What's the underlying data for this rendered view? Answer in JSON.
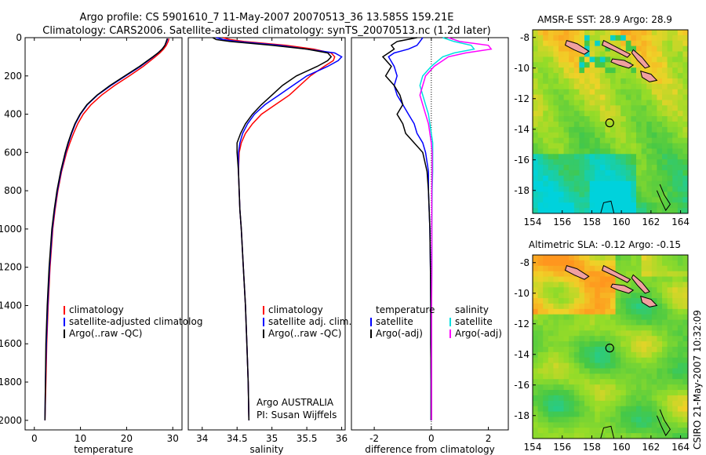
{
  "title_line1": "Argo profile: CS 5901610_7 11-May-2007 20070513_36 13.585S 159.21E",
  "title_line2": "Climatology: CARS2006. Satellite-adjusted climatology: synTS_20070513.nc (1.2d later)",
  "side_label": "CSIRO 21-May-2007 10:32:09",
  "argo_credit": "Argo AUSTRALIA",
  "pi_credit": "PI: Susan Wijffels",
  "colors": {
    "climatology": "#ff0000",
    "satellite": "#0000ff",
    "argo": "#000000",
    "sat_sal": "#00e0e0",
    "argo_sal": "#ff00ff",
    "land": "#f0a0a0"
  },
  "chart_data": [
    {
      "type": "line",
      "id": "temperature",
      "xlabel": "temperature",
      "ylabel": "",
      "xlim": [
        -2,
        32
      ],
      "ylim": [
        2050,
        0
      ],
      "xticks": [
        0,
        10,
        20,
        30
      ],
      "yticks": [
        0,
        200,
        400,
        600,
        800,
        1000,
        1200,
        1400,
        1600,
        1800,
        2000
      ],
      "legend": [
        "climatology",
        "satellite-adjusted climatolog",
        "Argo(..raw -QC)"
      ],
      "depth": [
        5,
        20,
        40,
        60,
        80,
        100,
        150,
        200,
        250,
        300,
        350,
        400,
        450,
        500,
        550,
        600,
        700,
        800,
        900,
        1000,
        1200,
        1400,
        1600,
        1800,
        2000
      ],
      "series": [
        {
          "name": "climatology",
          "values": [
            29.2,
            29.0,
            28.6,
            28.0,
            27.2,
            26.2,
            23.6,
            20.6,
            17.4,
            14.6,
            12.3,
            10.6,
            9.4,
            8.5,
            7.7,
            7.0,
            5.9,
            5.1,
            4.5,
            4.0,
            3.4,
            3.0,
            2.7,
            2.5,
            2.3
          ]
        },
        {
          "name": "satellite-adjusted climatolog",
          "values": [
            28.9,
            28.7,
            28.3,
            27.7,
            26.8,
            25.8,
            23.0,
            19.8,
            16.6,
            13.7,
            11.5,
            10.0,
            8.9,
            8.1,
            7.4,
            6.8,
            5.8,
            5.0,
            4.4,
            3.9,
            3.3,
            2.9,
            2.6,
            2.4,
            2.3
          ]
        },
        {
          "name": "Argo(..raw -QC)",
          "values": [
            28.8,
            28.6,
            28.3,
            27.7,
            26.8,
            25.7,
            22.8,
            19.6,
            16.4,
            13.6,
            11.4,
            9.9,
            8.8,
            8.0,
            7.3,
            6.7,
            5.7,
            4.9,
            4.3,
            3.8,
            3.2,
            2.8,
            2.5,
            2.4,
            2.3
          ]
        }
      ]
    },
    {
      "type": "line",
      "id": "salinity",
      "xlabel": "salinity",
      "ylabel": "",
      "xlim": [
        33.8,
        36.05
      ],
      "ylim": [
        2050,
        0
      ],
      "xticks": [
        34,
        34.5,
        35,
        35.5,
        36
      ],
      "yticks": [],
      "legend": [
        "climatology",
        "satellite adj. clim.",
        "Argo(..raw -QC)"
      ],
      "depth": [
        0,
        10,
        20,
        40,
        60,
        80,
        100,
        120,
        150,
        200,
        250,
        300,
        350,
        400,
        450,
        500,
        550,
        600,
        700,
        800,
        900,
        1000,
        1200,
        1400,
        1600,
        1800,
        2000
      ],
      "series": [
        {
          "name": "climatology",
          "values": [
            34.3,
            34.4,
            34.6,
            35.2,
            35.6,
            35.85,
            35.9,
            35.88,
            35.75,
            35.55,
            35.4,
            35.25,
            35.05,
            34.85,
            34.72,
            34.62,
            34.56,
            34.53,
            34.52,
            34.53,
            34.54,
            34.56,
            34.59,
            34.62,
            34.64,
            34.66,
            34.67
          ]
        },
        {
          "name": "satellite adj. clim.",
          "values": [
            34.2,
            34.3,
            34.5,
            35.1,
            35.5,
            35.9,
            36.0,
            35.95,
            35.8,
            35.5,
            35.3,
            35.1,
            34.9,
            34.75,
            34.65,
            34.58,
            34.54,
            34.52,
            34.52,
            34.53,
            34.54,
            34.56,
            34.59,
            34.62,
            34.64,
            34.66,
            34.67
          ]
        },
        {
          "name": "Argo(..raw -QC)",
          "values": [
            34.15,
            34.2,
            34.4,
            35.0,
            35.5,
            35.8,
            35.85,
            35.8,
            35.65,
            35.35,
            35.15,
            35.0,
            34.85,
            34.72,
            34.62,
            34.55,
            34.5,
            34.5,
            34.52,
            34.53,
            34.54,
            34.56,
            34.59,
            34.62,
            34.64,
            34.66,
            34.67
          ]
        }
      ]
    },
    {
      "type": "line",
      "id": "difference",
      "xlabel": "difference from climatology",
      "ylabel": "",
      "xlim": [
        -2.8,
        2.7
      ],
      "ylim": [
        2050,
        0
      ],
      "xticks": [
        -2,
        0,
        2
      ],
      "yticks": [],
      "legend_left": [
        "temperature",
        "satellite",
        "Argo(-adj)"
      ],
      "legend_right": [
        "salinity",
        "satellite",
        "Argo(-adj)"
      ],
      "depth": [
        0,
        20,
        40,
        60,
        80,
        100,
        150,
        200,
        250,
        300,
        350,
        400,
        450,
        500,
        550,
        600,
        700,
        800,
        1000,
        1200,
        1400,
        1600,
        1800,
        2000
      ],
      "series": [
        {
          "name": "temperature satellite",
          "values": [
            -0.3,
            -0.4,
            -0.5,
            -0.8,
            -1.3,
            -1.5,
            -1.3,
            -1.2,
            -1.3,
            -1.2,
            -1.0,
            -0.8,
            -0.6,
            -0.5,
            -0.3,
            -0.2,
            -0.1,
            -0.1,
            -0.05,
            -0.03,
            -0.02,
            -0.02,
            -0.01,
            -0.01
          ]
        },
        {
          "name": "temperature Argo(-adj)",
          "values": [
            -0.5,
            -1.2,
            -1.4,
            -1.3,
            -1.5,
            -1.7,
            -1.4,
            -1.6,
            -1.3,
            -1.1,
            -1.0,
            -1.2,
            -1.0,
            -0.9,
            -0.6,
            -0.3,
            -0.15,
            -0.1,
            -0.05,
            -0.03,
            -0.02,
            -0.02,
            -0.01,
            -0.01
          ]
        },
        {
          "name": "salinity satellite",
          "values": [
            0.4,
            0.8,
            1.4,
            1.5,
            0.8,
            0.4,
            0.0,
            -0.3,
            -0.4,
            -0.3,
            -0.2,
            -0.1,
            -0.05,
            0.0,
            0.05,
            0.05,
            0.05,
            0.03,
            0.02,
            0.02,
            0.01,
            0.01,
            0.01,
            0.01
          ]
        },
        {
          "name": "salinity Argo(-adj)",
          "values": [
            0.6,
            1.0,
            2.0,
            2.1,
            1.2,
            0.6,
            0.1,
            -0.2,
            -0.3,
            -0.4,
            -0.3,
            -0.2,
            -0.1,
            -0.05,
            0.0,
            0.03,
            0.03,
            0.02,
            0.02,
            0.02,
            0.01,
            0.01,
            0.01,
            0.01
          ]
        }
      ]
    },
    {
      "type": "heatmap",
      "id": "sst",
      "title": "AMSR-E SST: 28.9 Argo: 28.9",
      "xlim": [
        154,
        164.5
      ],
      "ylim": [
        -19.5,
        -7.5
      ],
      "xticks": [
        154,
        156,
        158,
        160,
        162,
        164
      ],
      "yticks": [
        -8,
        -10,
        -12,
        -14,
        -16,
        -18
      ],
      "argo_position": [
        159.21,
        -13.585
      ]
    },
    {
      "type": "heatmap",
      "id": "sla",
      "title": "Altimetric SLA: -0.12 Argo: -0.15",
      "xlim": [
        154,
        164.5
      ],
      "ylim": [
        -19.5,
        -7.5
      ],
      "xticks": [
        154,
        156,
        158,
        160,
        162,
        164
      ],
      "yticks": [
        -8,
        -10,
        -12,
        -14,
        -16,
        -18
      ],
      "argo_position": [
        159.21,
        -13.585
      ]
    }
  ]
}
